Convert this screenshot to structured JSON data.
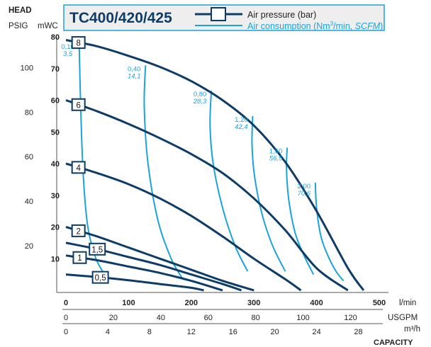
{
  "chart_data": {
    "type": "line",
    "title": "TC400/420/425",
    "legend": {
      "pressure_label": "Air pressure (bar)",
      "consumption_label_a": "Air consumption (Nm",
      "consumption_label_sup": "3",
      "consumption_label_b": "/min, ",
      "consumption_label_c": "SCFM",
      "consumption_label_d": ")",
      "placement": "top"
    },
    "y_axis": {
      "title": "HEAD",
      "psig_label": "PSIG",
      "mwc_label": "mWC",
      "mwc_range": [
        0,
        80
      ],
      "mwc_ticks": [
        "10",
        "20",
        "30",
        "40",
        "50",
        "60",
        "70",
        "80"
      ],
      "psig_ticks": [
        "20",
        "40",
        "60",
        "80",
        "100"
      ]
    },
    "x_axis": {
      "title": "CAPACITY",
      "lmin_unit": "l/min",
      "lmin_range": [
        0,
        500
      ],
      "lmin_ticks": [
        "0",
        "100",
        "200",
        "300",
        "400",
        "500"
      ],
      "usgpm_unit": "USGPM",
      "usgpm_ticks": [
        "0",
        "20",
        "40",
        "60",
        "80",
        "100",
        "120"
      ],
      "m3h_unit": "m³/h",
      "m3h_ticks": [
        "0",
        "4",
        "8",
        "12",
        "16",
        "20",
        "24",
        "28"
      ]
    },
    "pressure_curves": [
      {
        "name": "8",
        "points": [
          [
            0,
            79
          ],
          [
            50,
            77
          ],
          [
            100,
            74
          ],
          [
            150,
            70.5
          ],
          [
            200,
            66
          ],
          [
            250,
            60
          ],
          [
            300,
            52
          ],
          [
            350,
            40.5
          ],
          [
            400,
            25
          ],
          [
            450,
            7
          ],
          [
            475,
            0
          ]
        ]
      },
      {
        "name": "6",
        "points": [
          [
            0,
            60
          ],
          [
            50,
            56.5
          ],
          [
            100,
            52.5
          ],
          [
            150,
            48
          ],
          [
            200,
            43
          ],
          [
            250,
            37
          ],
          [
            300,
            29
          ],
          [
            350,
            19
          ],
          [
            400,
            7
          ],
          [
            450,
            0
          ]
        ]
      },
      {
        "name": "4",
        "points": [
          [
            0,
            40
          ],
          [
            50,
            37
          ],
          [
            100,
            33.5
          ],
          [
            150,
            29
          ],
          [
            200,
            23.5
          ],
          [
            250,
            17
          ],
          [
            300,
            10
          ],
          [
            350,
            3.5
          ],
          [
            375,
            0
          ]
        ]
      },
      {
        "name": "2",
        "points": [
          [
            0,
            20
          ],
          [
            50,
            17
          ],
          [
            100,
            13.5
          ],
          [
            150,
            10
          ],
          [
            200,
            6.5
          ],
          [
            250,
            3
          ],
          [
            300,
            0
          ]
        ]
      },
      {
        "name": "1,5",
        "points": [
          [
            0,
            15
          ],
          [
            50,
            13
          ],
          [
            100,
            10.5
          ],
          [
            150,
            8
          ],
          [
            200,
            5
          ],
          [
            250,
            2
          ],
          [
            280,
            0
          ]
        ]
      },
      {
        "name": "1",
        "points": [
          [
            0,
            11
          ],
          [
            50,
            9.5
          ],
          [
            100,
            7.5
          ],
          [
            150,
            5.5
          ],
          [
            200,
            3
          ],
          [
            250,
            0
          ]
        ]
      },
      {
        "name": "0,5",
        "points": [
          [
            0,
            5
          ],
          [
            50,
            4.2
          ],
          [
            100,
            3.2
          ],
          [
            150,
            2
          ],
          [
            200,
            0.8
          ],
          [
            220,
            0
          ]
        ]
      }
    ],
    "consumption_curves": [
      {
        "label": "0,10",
        "label_scfm": "3,5",
        "points": [
          [
            21,
            78
          ],
          [
            24,
            55
          ],
          [
            28,
            35
          ],
          [
            35,
            20
          ],
          [
            48,
            10
          ],
          [
            65,
            4
          ]
        ]
      },
      {
        "label": "0,40",
        "label_scfm": "14,1",
        "points": [
          [
            127,
            71
          ],
          [
            125,
            58
          ],
          [
            131,
            40
          ],
          [
            147,
            22
          ],
          [
            168,
            10
          ],
          [
            185,
            4
          ]
        ]
      },
      {
        "label": "0,80",
        "label_scfm": "28,3",
        "points": [
          [
            232,
            63
          ],
          [
            230,
            52
          ],
          [
            235,
            40
          ],
          [
            250,
            26
          ],
          [
            270,
            14
          ],
          [
            290,
            6
          ]
        ]
      },
      {
        "label": "1,20",
        "label_scfm": "42,4",
        "points": [
          [
            298,
            55
          ],
          [
            297,
            46
          ],
          [
            301,
            36
          ],
          [
            313,
            24
          ],
          [
            330,
            14
          ],
          [
            350,
            6
          ]
        ]
      },
      {
        "label": "1,60",
        "label_scfm": "56,5",
        "points": [
          [
            353,
            45
          ],
          [
            352,
            38
          ],
          [
            356,
            28
          ],
          [
            366,
            18
          ],
          [
            380,
            11
          ],
          [
            395,
            5
          ]
        ]
      },
      {
        "label": "2,00",
        "label_scfm": "70,6",
        "points": [
          [
            398,
            34
          ],
          [
            400,
            26
          ],
          [
            407,
            17
          ],
          [
            418,
            11
          ],
          [
            431,
            6
          ],
          [
            443,
            3
          ]
        ]
      }
    ],
    "colors": {
      "pressure": "#0d3c68",
      "consumption": "#1aa3dd",
      "title_box_border": "#1aa3dd",
      "title_box_fill": "#eeeeee",
      "title_text": "#0d3c68",
      "text": "#222222"
    },
    "grid": false
  }
}
